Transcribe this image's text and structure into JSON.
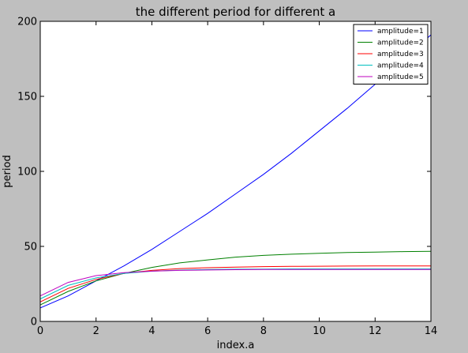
{
  "chart_data": {
    "type": "line",
    "title": "the different period for different a",
    "xlabel": "index.a",
    "ylabel": "period",
    "xlim": [
      0,
      14
    ],
    "ylim": [
      0,
      200
    ],
    "xticks": [
      0,
      2,
      4,
      6,
      8,
      10,
      12,
      14
    ],
    "yticks": [
      0,
      50,
      100,
      150,
      200
    ],
    "legend_position": "top-right",
    "grid": false,
    "x": [
      0,
      1,
      2,
      3,
      4,
      5,
      6,
      7,
      8,
      9,
      10,
      11,
      12,
      13,
      14
    ],
    "series": [
      {
        "name": "amplitude=1",
        "color": "#0000ff",
        "values": [
          9,
          17,
          27,
          37,
          48,
          60,
          72,
          85,
          98,
          112,
          127,
          142,
          158,
          174,
          191
        ]
      },
      {
        "name": "amplitude=2",
        "color": "#008000",
        "values": [
          11,
          20,
          27,
          32,
          36,
          39,
          41,
          42.8,
          44,
          44.8,
          45.4,
          45.9,
          46.2,
          46.5,
          46.7
        ]
      },
      {
        "name": "amplitude=3",
        "color": "#ff0000",
        "values": [
          13,
          22,
          28,
          32,
          34,
          35.2,
          35.8,
          36.2,
          36.5,
          36.7,
          36.8,
          36.9,
          37,
          37,
          37
        ]
      },
      {
        "name": "amplitude=4",
        "color": "#00bfbf",
        "values": [
          15,
          24,
          29,
          32,
          33.5,
          34.2,
          34.6,
          34.8,
          34.9,
          35,
          35,
          35,
          35,
          35,
          35
        ]
      },
      {
        "name": "amplitude=5",
        "color": "#bf00bf",
        "values": [
          17,
          26,
          30.5,
          32.5,
          33.5,
          34,
          34.3,
          34.5,
          34.6,
          34.6,
          34.6,
          34.6,
          34.6,
          34.6,
          34.6
        ]
      }
    ]
  }
}
